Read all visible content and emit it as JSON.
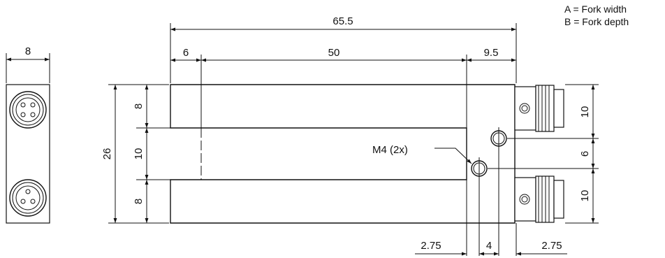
{
  "legend": {
    "a": "A = Fork width",
    "b": "B = Fork depth"
  },
  "dimensions": {
    "side_width": "8",
    "overall_length": "65.5",
    "left_offset": "6",
    "fork_depth": "50",
    "right_offset": "9.5",
    "total_height": "26",
    "top_arm": "8",
    "fork_width": "10",
    "bottom_arm": "8",
    "conn_top": "10",
    "hole_spacing": "6",
    "conn_bottom": "10",
    "hole_x_left": "2.75",
    "hole_x_pitch": "4",
    "hole_x_right": "2.75"
  },
  "callout": {
    "holes": "M4 (2x)"
  }
}
